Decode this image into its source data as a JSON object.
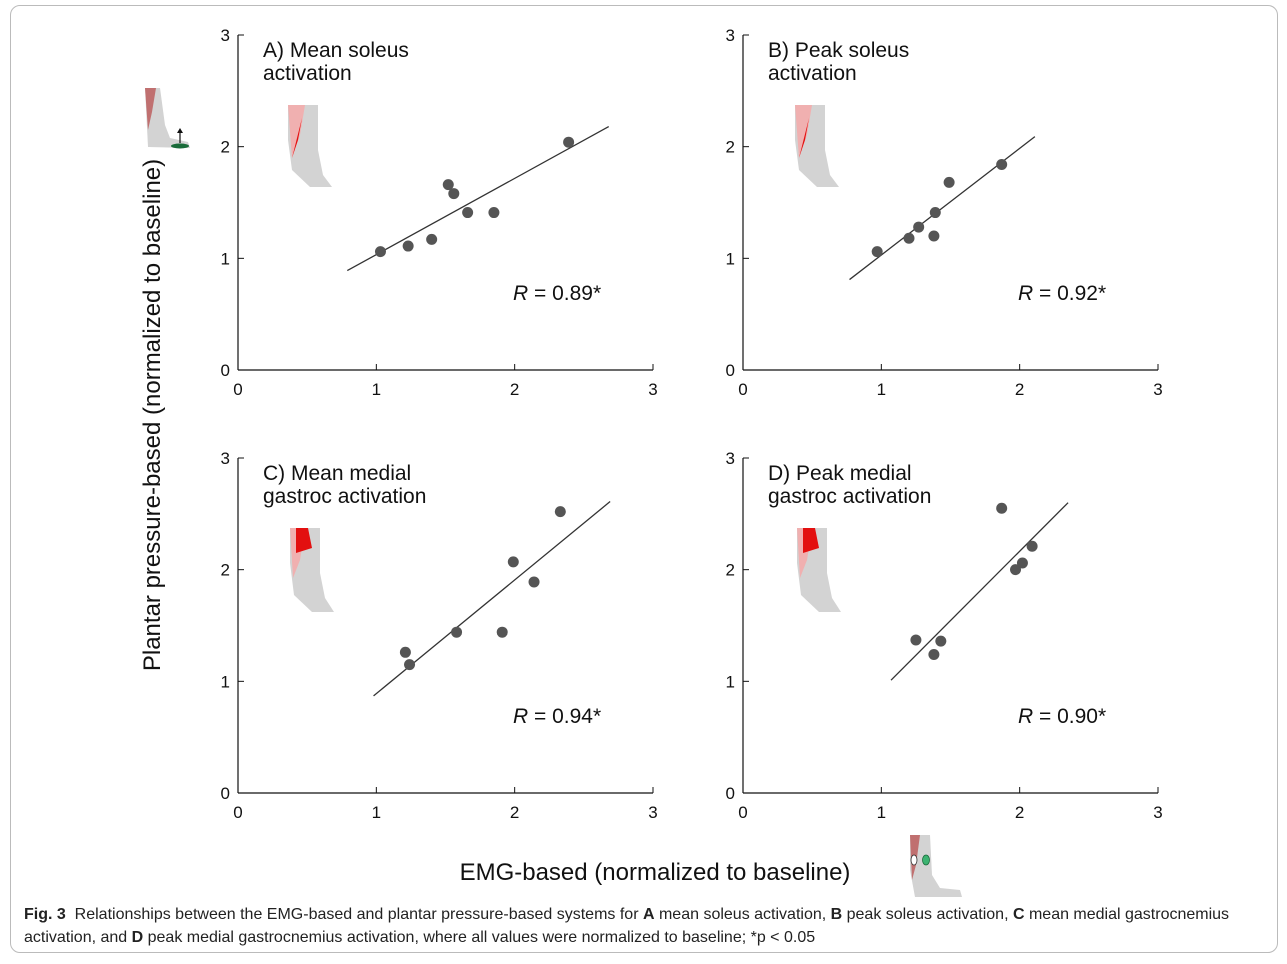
{
  "chart_data": [
    {
      "type": "scatter",
      "title": [
        "A) Mean soleus",
        "activation"
      ],
      "annotation": {
        "symbol": "R",
        "text": " = 0.89*"
      },
      "x": [
        1.03,
        1.23,
        1.4,
        1.52,
        1.56,
        1.66,
        1.85,
        2.39
      ],
      "values": [
        1.06,
        1.11,
        1.17,
        1.66,
        1.58,
        1.41,
        1.41,
        2.04
      ],
      "fit": {
        "x": [
          0.79,
          2.68
        ],
        "y": [
          0.89,
          2.18
        ]
      },
      "color": "#555555",
      "xlim": [
        0,
        3
      ],
      "ylim": [
        0,
        3
      ],
      "xticks": [
        0,
        1,
        2,
        3
      ],
      "yticks": [
        0,
        1,
        2,
        3
      ]
    },
    {
      "type": "scatter",
      "title": [
        "B) Peak soleus",
        "activation"
      ],
      "annotation": {
        "symbol": "R",
        "text": " = 0.92*"
      },
      "x": [
        0.97,
        1.2,
        1.27,
        1.38,
        1.39,
        1.49,
        1.87
      ],
      "values": [
        1.06,
        1.18,
        1.28,
        1.2,
        1.41,
        1.68,
        1.84
      ],
      "fit": {
        "x": [
          0.77,
          2.11
        ],
        "y": [
          0.81,
          2.09
        ]
      },
      "color": "#555555",
      "xlim": [
        0,
        3
      ],
      "ylim": [
        0,
        3
      ],
      "xticks": [
        0,
        1,
        2,
        3
      ],
      "yticks": [
        0,
        1,
        2,
        3
      ]
    },
    {
      "type": "scatter",
      "title": [
        "C) Mean medial",
        "gastroc activation"
      ],
      "annotation": {
        "symbol": "R",
        "text": " = 0.94*"
      },
      "x": [
        1.21,
        1.24,
        1.58,
        1.91,
        1.99,
        2.14,
        2.33
      ],
      "values": [
        1.26,
        1.15,
        1.44,
        1.44,
        2.07,
        1.89,
        2.52
      ],
      "fit": {
        "x": [
          0.98,
          2.69
        ],
        "y": [
          0.87,
          2.61
        ]
      },
      "color": "#555555",
      "xlim": [
        0,
        3
      ],
      "ylim": [
        0,
        3
      ],
      "xticks": [
        0,
        1,
        2,
        3
      ],
      "yticks": [
        0,
        1,
        2,
        3
      ]
    },
    {
      "type": "scatter",
      "title": [
        "D) Peak medial",
        "gastroc activation"
      ],
      "annotation": {
        "symbol": "R",
        "text": " = 0.90*"
      },
      "x": [
        1.25,
        1.38,
        1.43,
        1.87,
        1.97,
        2.02,
        2.09
      ],
      "values": [
        1.37,
        1.24,
        1.36,
        2.55,
        2.0,
        2.06,
        2.21
      ],
      "fit": {
        "x": [
          1.07,
          2.35
        ],
        "y": [
          1.01,
          2.6
        ]
      },
      "color": "#555555",
      "xlim": [
        0,
        3
      ],
      "ylim": [
        0,
        3
      ],
      "xticks": [
        0,
        1,
        2,
        3
      ],
      "yticks": [
        0,
        1,
        2,
        3
      ]
    }
  ],
  "xlabel": "EMG-based (normalized to baseline)",
  "ylabel": "Plantar pressure-based (normalized to baseline)",
  "caption": [
    {
      "text": "Fig. 3",
      "bold": true
    },
    {
      "text": "  Relationships between the EMG-based and plantar pressure-based systems for ",
      "bold": false
    },
    {
      "text": "A",
      "bold": true
    },
    {
      "text": " mean soleus activation, ",
      "bold": false
    },
    {
      "text": "B",
      "bold": true
    },
    {
      "text": " peak soleus activation, ",
      "bold": false
    },
    {
      "text": "C",
      "bold": true
    },
    {
      "text": " mean medial gastrocnemius activation, and ",
      "bold": false
    },
    {
      "text": "D",
      "bold": true
    },
    {
      "text": " peak medial gastrocnemius activation, where all values were normalized to baseline; *p < 0.05",
      "bold": false
    }
  ]
}
